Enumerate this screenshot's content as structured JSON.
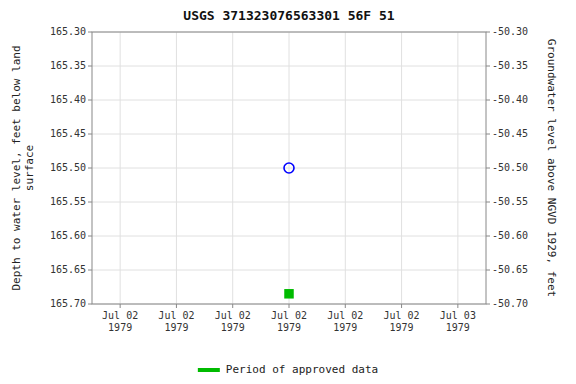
{
  "chart_data": {
    "type": "scatter",
    "title": "USGS 371323076563301 56F 51",
    "ylabel": "Depth to water level, feet below land\nsurface",
    "y2label": "Groundwater level above NGVD 1929, feet",
    "categories": [
      "Jul 02\n1979",
      "Jul 02\n1979",
      "Jul 02\n1979",
      "Jul 02\n1979",
      "Jul 02\n1979",
      "Jul 02\n1979",
      "Jul 03\n1979"
    ],
    "series": [
      {
        "color": "blue",
        "marker": "open-circle",
        "values": [
          null,
          null,
          null,
          165.5,
          null,
          null,
          null
        ]
      },
      {
        "name": "Period of approved data",
        "color": "#00bb00",
        "marker": "square",
        "values": [
          null,
          null,
          null,
          165.685,
          null,
          null,
          null
        ]
      }
    ],
    "ylim": [
      165.7,
      165.3
    ],
    "yticks": [
      {
        "value": 165.3,
        "label": "165.30"
      },
      {
        "value": 165.35,
        "label": "165.35"
      },
      {
        "value": 165.4,
        "label": "165.40"
      },
      {
        "value": 165.45,
        "label": "165.45"
      },
      {
        "value": 165.5,
        "label": "165.50"
      },
      {
        "value": 165.55,
        "label": "165.55"
      },
      {
        "value": 165.6,
        "label": "165.60"
      },
      {
        "value": 165.65,
        "label": "165.65"
      },
      {
        "value": 165.7,
        "label": "165.70"
      }
    ],
    "y2lim": [
      -50.7,
      -50.3
    ],
    "y2ticks": [
      {
        "value": -50.3,
        "label": "-50.30"
      },
      {
        "value": -50.35,
        "label": "-50.35"
      },
      {
        "value": -50.4,
        "label": "-50.40"
      },
      {
        "value": -50.45,
        "label": "-50.45"
      },
      {
        "value": -50.5,
        "label": "-50.50"
      },
      {
        "value": -50.55,
        "label": "-50.55"
      },
      {
        "value": -50.6,
        "label": "-50.60"
      },
      {
        "value": -50.65,
        "label": "-50.65"
      },
      {
        "value": -50.7,
        "label": "-50.70"
      }
    ],
    "grid": true,
    "legend": "bottom"
  }
}
